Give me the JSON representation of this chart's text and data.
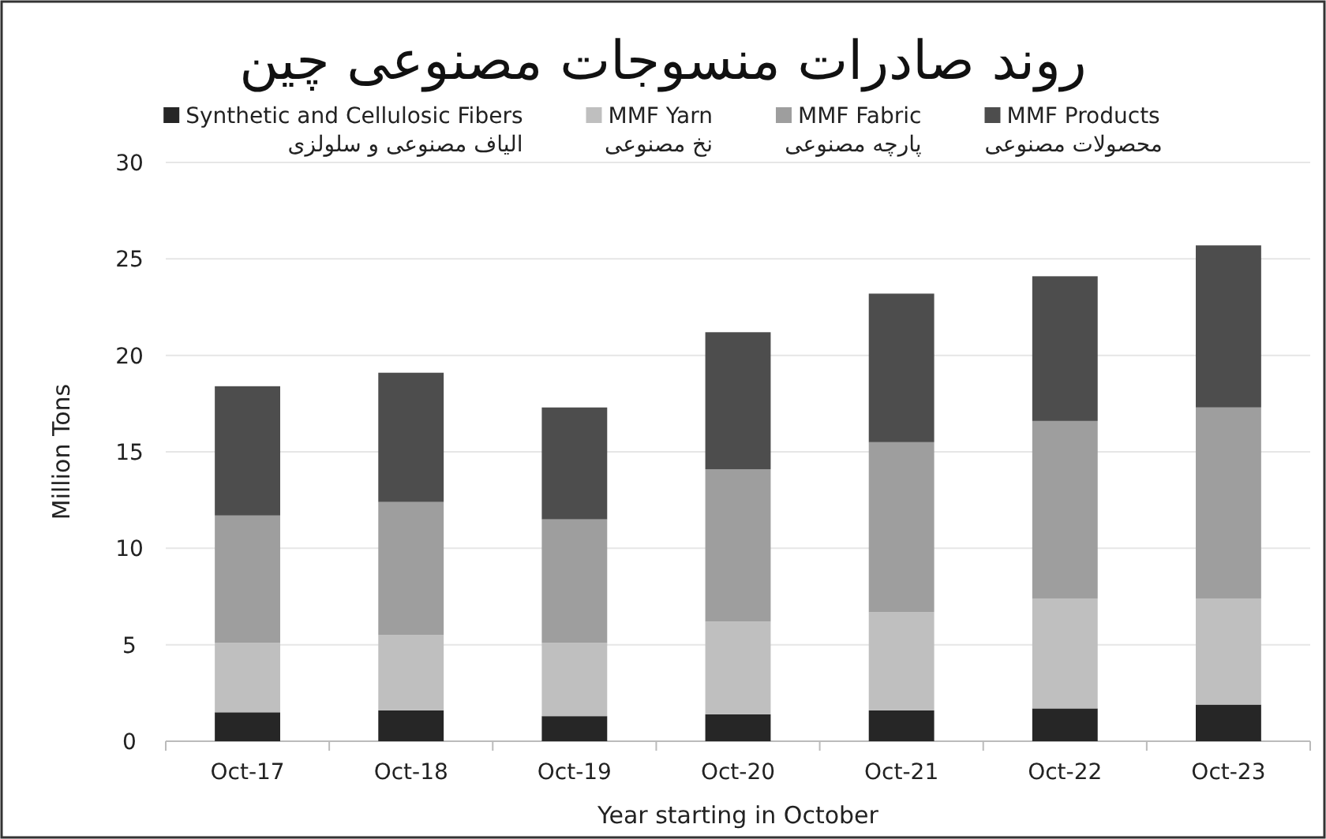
{
  "chart_data": {
    "type": "bar",
    "stacked": true,
    "title": "روند صادرات منسوجات مصنوعی چین",
    "xlabel": "Year starting in October",
    "ylabel": "Million Tons",
    "categories": [
      "Oct-17",
      "Oct-18",
      "Oct-19",
      "Oct-20",
      "Oct-21",
      "Oct-22",
      "Oct-23"
    ],
    "series": [
      {
        "name": "Synthetic and Cellulosic Fibers\nالیاف مصنوعی و سلولزی",
        "color": "#262626",
        "values": [
          1.5,
          1.6,
          1.3,
          1.4,
          1.6,
          1.7,
          1.9
        ]
      },
      {
        "name": "MMF Yarn\nنخ مصنوعی",
        "color": "#bfbfbf",
        "values": [
          3.6,
          3.9,
          3.8,
          4.8,
          5.1,
          5.7,
          5.5
        ]
      },
      {
        "name": "MMF Fabric\nپارچه مصنوعی",
        "color": "#9e9e9e",
        "values": [
          6.6,
          6.9,
          6.4,
          7.9,
          8.8,
          9.2,
          9.9
        ]
      },
      {
        "name": "MMF Products\nمحصولات مصنوعی",
        "color": "#4d4d4d",
        "values": [
          6.7,
          6.7,
          5.8,
          7.1,
          7.7,
          7.5,
          8.4
        ]
      }
    ],
    "ylim": [
      0,
      30
    ],
    "yticks": [
      0,
      5,
      10,
      15,
      20,
      25,
      30
    ],
    "grid": "y",
    "legend": "top"
  }
}
